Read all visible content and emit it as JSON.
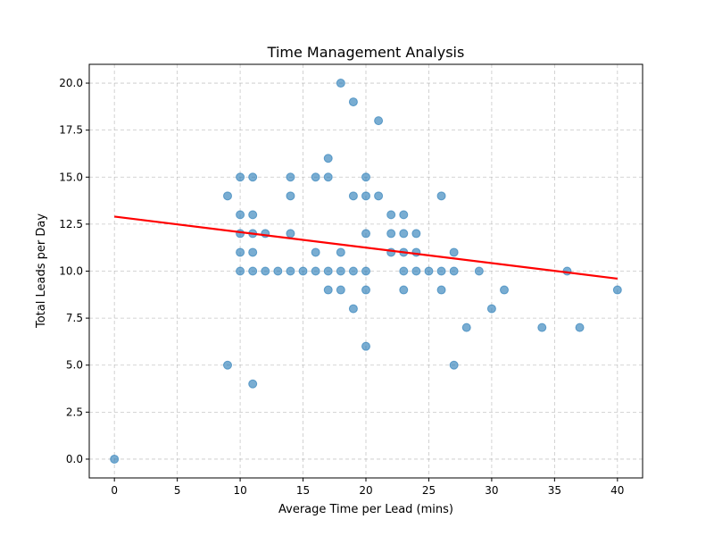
{
  "chart_data": {
    "type": "scatter",
    "title": "Time Management Analysis",
    "xlabel": "Average Time per Lead (mins)",
    "ylabel": "Total Leads per Day",
    "xlim": [
      -2,
      42
    ],
    "ylim": [
      -1,
      21
    ],
    "xticks": [
      0,
      5,
      10,
      15,
      20,
      25,
      30,
      35,
      40
    ],
    "yticks": [
      0.0,
      2.5,
      5.0,
      7.5,
      10.0,
      12.5,
      15.0,
      17.5,
      20.0
    ],
    "xtick_labels": [
      "0",
      "5",
      "10",
      "15",
      "20",
      "25",
      "30",
      "35",
      "40"
    ],
    "ytick_labels": [
      "0.0",
      "2.5",
      "5.0",
      "7.5",
      "10.0",
      "12.5",
      "15.0",
      "17.5",
      "20.0"
    ],
    "grid": true,
    "point_color": "#1f77b4",
    "point_alpha": 0.6,
    "points": [
      [
        0,
        0
      ],
      [
        9,
        5
      ],
      [
        9,
        14
      ],
      [
        11,
        4
      ],
      [
        10,
        15
      ],
      [
        10,
        13
      ],
      [
        10,
        12
      ],
      [
        10,
        11
      ],
      [
        10,
        10
      ],
      [
        11,
        15
      ],
      [
        11,
        13
      ],
      [
        11,
        12
      ],
      [
        11,
        11
      ],
      [
        11,
        10
      ],
      [
        12,
        12
      ],
      [
        12,
        10
      ],
      [
        13,
        10
      ],
      [
        14,
        15
      ],
      [
        14,
        14
      ],
      [
        14,
        12
      ],
      [
        14,
        10
      ],
      [
        15,
        10
      ],
      [
        16,
        15
      ],
      [
        16,
        11
      ],
      [
        16,
        10
      ],
      [
        17,
        16
      ],
      [
        17,
        15
      ],
      [
        17,
        10
      ],
      [
        17,
        9
      ],
      [
        18,
        20
      ],
      [
        18,
        11
      ],
      [
        18,
        10
      ],
      [
        18,
        9
      ],
      [
        19,
        19
      ],
      [
        19,
        14
      ],
      [
        19,
        10
      ],
      [
        19,
        8
      ],
      [
        20,
        15
      ],
      [
        20,
        14
      ],
      [
        20,
        12
      ],
      [
        20,
        10
      ],
      [
        20,
        9
      ],
      [
        20,
        6
      ],
      [
        21,
        18
      ],
      [
        21,
        14
      ],
      [
        22,
        13
      ],
      [
        22,
        12
      ],
      [
        22,
        11
      ],
      [
        23,
        13
      ],
      [
        23,
        12
      ],
      [
        23,
        11
      ],
      [
        23,
        10
      ],
      [
        23,
        9
      ],
      [
        24,
        12
      ],
      [
        24,
        11
      ],
      [
        24,
        10
      ],
      [
        25,
        10
      ],
      [
        26,
        14
      ],
      [
        26,
        10
      ],
      [
        26,
        9
      ],
      [
        27,
        11
      ],
      [
        27,
        10
      ],
      [
        27,
        5
      ],
      [
        28,
        7
      ],
      [
        29,
        10
      ],
      [
        30,
        8
      ],
      [
        31,
        9
      ],
      [
        34,
        7
      ],
      [
        36,
        10
      ],
      [
        37,
        7
      ],
      [
        40,
        9
      ]
    ],
    "trendline": {
      "color": "#ff0000",
      "x": [
        0,
        40
      ],
      "y": [
        12.9,
        9.6
      ]
    }
  }
}
